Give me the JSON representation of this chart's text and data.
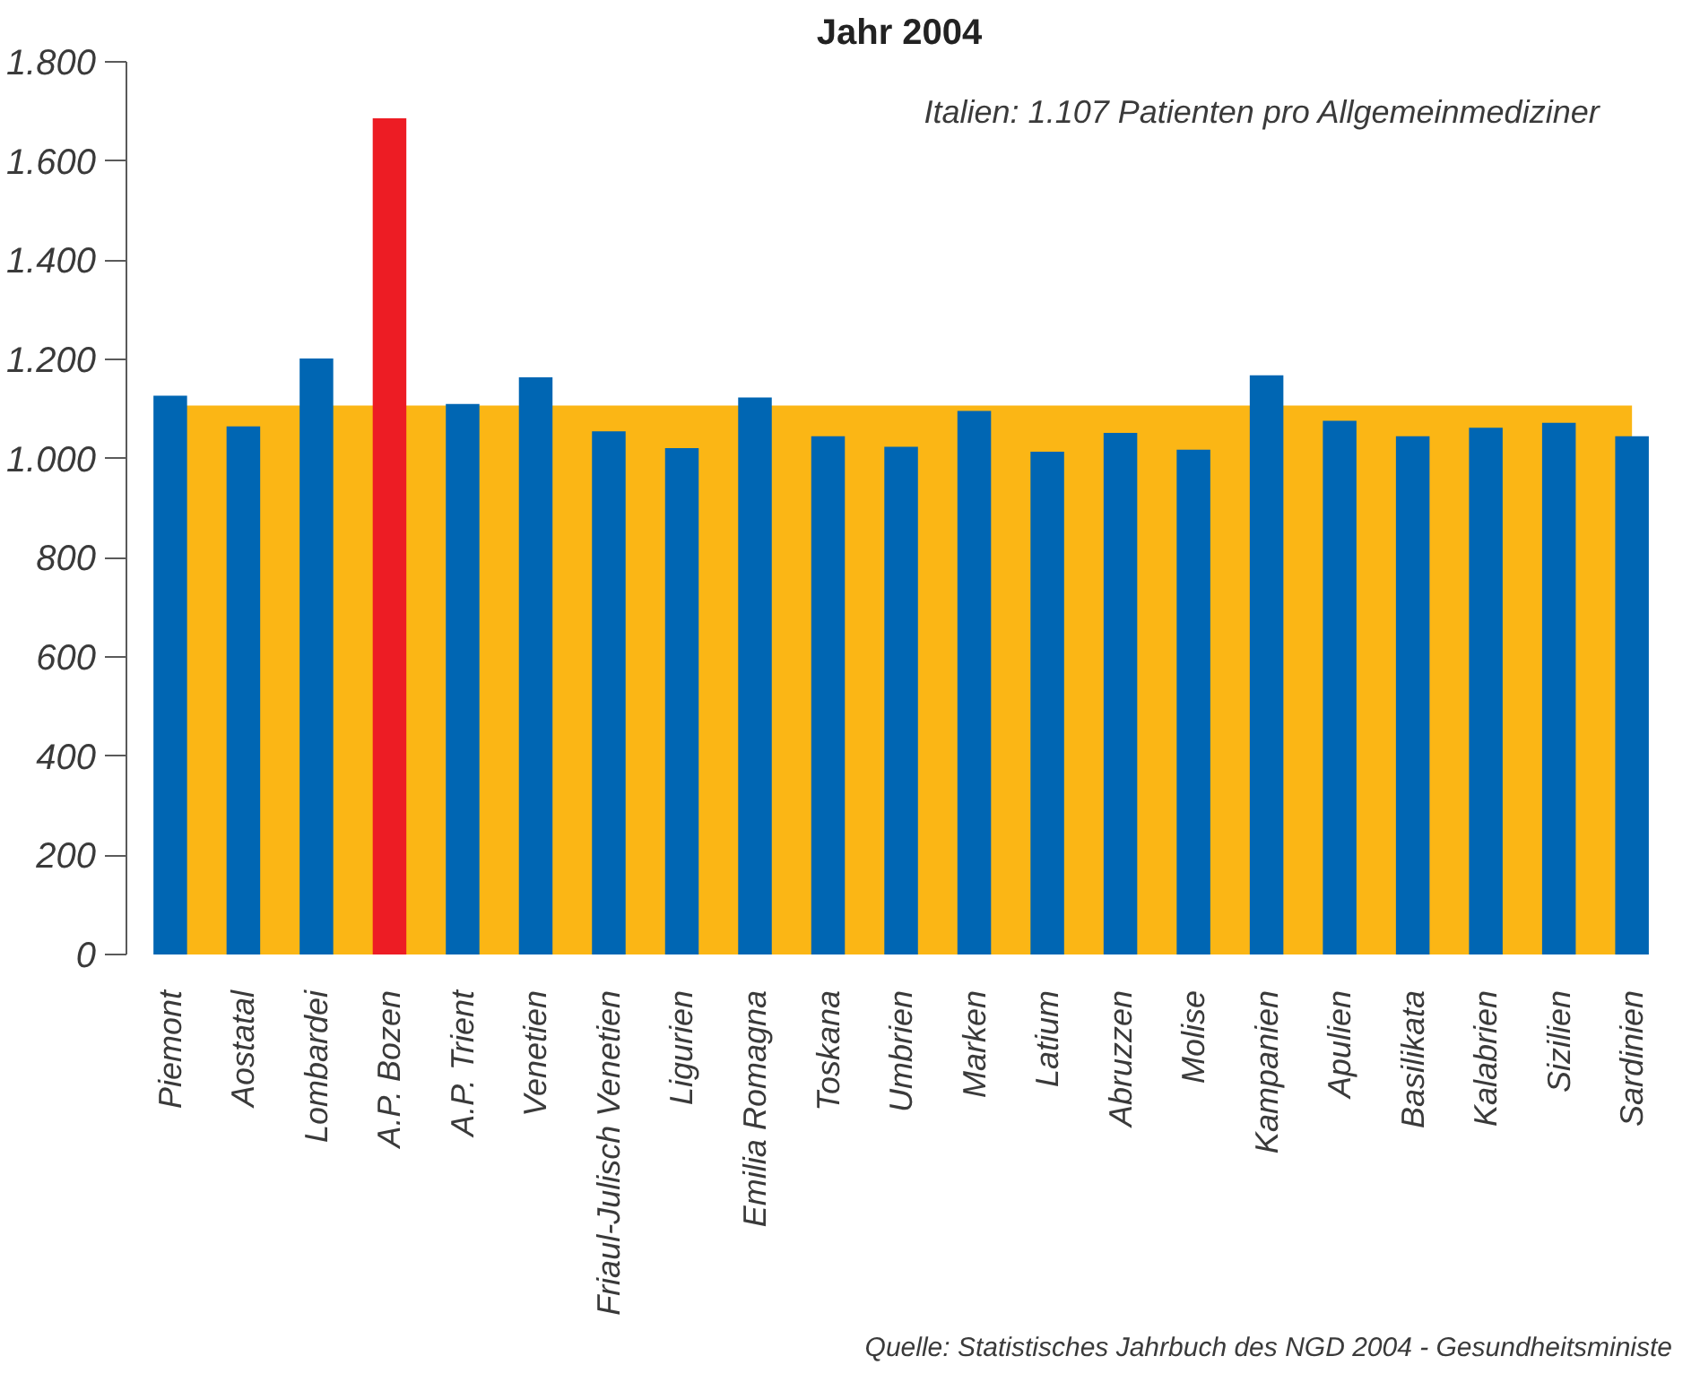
{
  "chart_data": {
    "type": "bar",
    "title": "Jahr 2004",
    "categories": [
      "Piemont",
      "Aostatal",
      "Lombardei",
      "A.P. Bozen",
      "A.P. Trient",
      "Venetien",
      "Friaul-Julisch Venetien",
      "Ligurien",
      "Emilia Romagna",
      "Toskana",
      "Umbrien",
      "Marken",
      "Latium",
      "Abruzzen",
      "Molise",
      "Kampanien",
      "Apulien",
      "Basilikata",
      "Kalabrien",
      "Sizilien",
      "Sardinien"
    ],
    "series": [
      {
        "colors": [
          "#0066b3",
          "#0066b3",
          "#0066b3",
          "#ed1c24",
          "#0066b3",
          "#0066b3",
          "#0066b3",
          "#0066b3",
          "#0066b3",
          "#0066b3",
          "#0066b3",
          "#0066b3",
          "#0066b3",
          "#0066b3",
          "#0066b3",
          "#0066b3",
          "#0066b3",
          "#0066b3",
          "#0066b3",
          "#0066b3",
          "#0066b3"
        ],
        "values": [
          1127,
          1065,
          1202,
          1686,
          1110,
          1164,
          1055,
          1021,
          1123,
          1045,
          1024,
          1096,
          1014,
          1052,
          1018,
          1168,
          1076,
          1045,
          1062,
          1072,
          1045
        ]
      }
    ],
    "bands": [
      {
        "axis": "y",
        "from": 0,
        "to": 1107,
        "color": "#fbb615"
      }
    ],
    "ylim": [
      0,
      1800
    ],
    "yticks": [
      0,
      200,
      400,
      600,
      800,
      {
        "value": 1000,
        "label": "1.000"
      },
      {
        "value": 1200,
        "label": "1.200"
      },
      {
        "value": 1400,
        "label": "1.400"
      },
      {
        "value": 1600,
        "label": "1.600"
      },
      {
        "value": 1800,
        "label": "1.800"
      }
    ],
    "grid": false,
    "annotations": [
      "Italien: 1.107 Patienten pro Allgemeinmediziner",
      "Quelle: Statistisches Jahrbuch des NGD 2004 - Gesundheitsministe"
    ]
  }
}
